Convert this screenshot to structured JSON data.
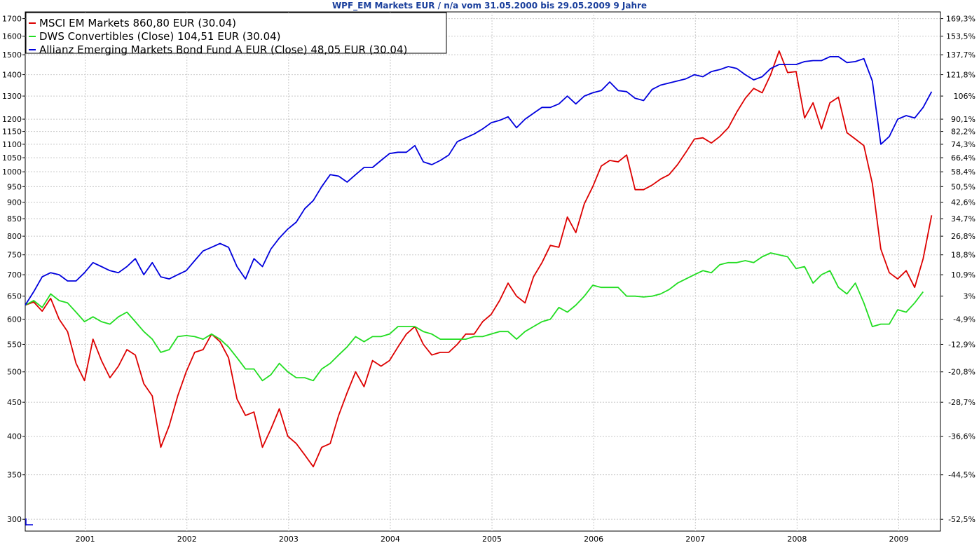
{
  "chart_data": {
    "type": "line",
    "title": "WPF_EM Markets EUR / n/a vom 31.05.2000 bis 29.05.2009 9 Jahre",
    "y_scale": "log",
    "ylim": [
      288,
      1740
    ],
    "xlim": [
      2000.41,
      2009.41
    ],
    "grid": true,
    "legend_position": "top-left",
    "left_ticks": [
      300,
      350,
      400,
      450,
      500,
      550,
      600,
      650,
      700,
      750,
      800,
      850,
      900,
      950,
      1000,
      1050,
      1100,
      1150,
      1200,
      1300,
      1400,
      1500,
      1600,
      1700
    ],
    "right_ticks": [
      "-52,5%",
      "-44,5%",
      "-36,6%",
      "-28,7%",
      "-20,8%",
      "-12,9%",
      "-4,9%",
      "3%",
      "10,9%",
      "18,8%",
      "26,8%",
      "34,7%",
      "42,6%",
      "50,5%",
      "58,4%",
      "66,4%",
      "74,3%",
      "82,2%",
      "90,1%",
      "106%",
      "121,8%",
      "137,7%",
      "153,5%",
      "169,3%"
    ],
    "x_ticks": [
      "2001",
      "2002",
      "2003",
      "2004",
      "2005",
      "2006",
      "2007",
      "2008",
      "2009"
    ],
    "x_start": 2000.41,
    "x_step": 0.0833,
    "series": [
      {
        "name": "MSCI EM Markets 860,80 EUR (30.04)",
        "color": "#dd0000",
        "values": [
          630,
          637,
          617,
          645,
          600,
          575,
          515,
          485,
          560,
          520,
          490,
          510,
          540,
          530,
          480,
          460,
          385,
          415,
          460,
          500,
          535,
          540,
          570,
          555,
          525,
          455,
          430,
          435,
          385,
          410,
          440,
          400,
          390,
          375,
          360,
          385,
          390,
          430,
          465,
          500,
          475,
          520,
          510,
          520,
          545,
          570,
          585,
          550,
          530,
          535,
          535,
          550,
          570,
          570,
          595,
          610,
          640,
          680,
          650,
          635,
          695,
          730,
          775,
          770,
          855,
          810,
          895,
          950,
          1020,
          1040,
          1035,
          1060,
          940,
          940,
          955,
          975,
          990,
          1025,
          1070,
          1120,
          1125,
          1105,
          1130,
          1165,
          1230,
          1290,
          1335,
          1315,
          1400,
          1520,
          1410,
          1415,
          1205,
          1270,
          1160,
          1270,
          1295,
          1145,
          1120,
          1095,
          960,
          765,
          705,
          690,
          710,
          670,
          740,
          860
        ]
      },
      {
        "name": "DWS Convertibles (Close) 104,51 EUR (30.04)",
        "color": "#22dd22",
        "values": [
          630,
          640,
          625,
          655,
          640,
          635,
          615,
          595,
          605,
          595,
          590,
          605,
          615,
          595,
          575,
          560,
          535,
          540,
          565,
          567,
          565,
          560,
          570,
          560,
          545,
          525,
          505,
          505,
          485,
          495,
          515,
          500,
          490,
          490,
          485,
          505,
          515,
          530,
          545,
          565,
          555,
          565,
          565,
          570,
          585,
          585,
          585,
          575,
          570,
          560,
          560,
          560,
          560,
          565,
          565,
          570,
          575,
          575,
          560,
          575,
          585,
          595,
          600,
          625,
          615,
          630,
          650,
          675,
          670,
          670,
          670,
          650,
          650,
          648,
          650,
          655,
          665,
          680,
          690,
          700,
          710,
          705,
          725,
          730,
          730,
          735,
          730,
          745,
          755,
          750,
          745,
          715,
          720,
          680,
          700,
          710,
          670,
          655,
          680,
          635,
          585,
          590,
          590,
          620,
          615,
          635,
          660
        ]
      },
      {
        "name": "Allianz Emerging Markets Bond Fund A EUR (Close) 48,05 EUR (30.04)",
        "color": "#0000dd",
        "values": [
          630,
          660,
          695,
          705,
          700,
          685,
          685,
          705,
          730,
          720,
          710,
          705,
          720,
          740,
          700,
          730,
          695,
          690,
          700,
          710,
          735,
          760,
          770,
          780,
          770,
          720,
          690,
          740,
          720,
          765,
          795,
          820,
          840,
          880,
          905,
          950,
          990,
          985,
          965,
          990,
          1015,
          1015,
          1040,
          1065,
          1070,
          1070,
          1095,
          1035,
          1025,
          1040,
          1060,
          1110,
          1125,
          1140,
          1160,
          1185,
          1195,
          1210,
          1165,
          1200,
          1225,
          1250,
          1250,
          1265,
          1300,
          1265,
          1300,
          1315,
          1325,
          1365,
          1325,
          1320,
          1290,
          1280,
          1330,
          1350,
          1360,
          1370,
          1380,
          1400,
          1390,
          1415,
          1425,
          1440,
          1430,
          1400,
          1375,
          1390,
          1430,
          1450,
          1450,
          1450,
          1465,
          1470,
          1470,
          1490,
          1490,
          1460,
          1465,
          1480,
          1370,
          1100,
          1130,
          1200,
          1215,
          1205,
          1250,
          1320
        ]
      }
    ]
  }
}
